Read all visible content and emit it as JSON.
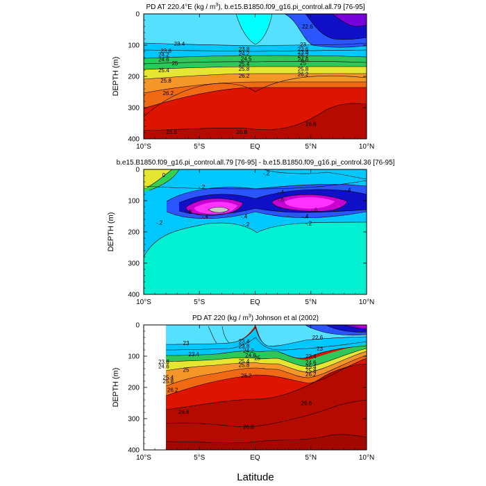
{
  "figure": {
    "xlabel": "Latitude",
    "x_ticks": [
      {
        "value": -10,
        "label": "10°S"
      },
      {
        "value": -5,
        "label": "5°S"
      },
      {
        "value": 0,
        "label": "EQ"
      },
      {
        "value": 5,
        "label": "5°N"
      },
      {
        "value": 10,
        "label": "10°N"
      }
    ],
    "y_ticks": [
      {
        "value": 0,
        "label": "0"
      },
      {
        "value": 100,
        "label": "100"
      },
      {
        "value": 200,
        "label": "200"
      },
      {
        "value": 300,
        "label": "300"
      },
      {
        "value": 400,
        "label": "400"
      }
    ]
  },
  "chart_data": [
    {
      "type": "heatmap",
      "title_main": "PD AT 220.4°E (kg / m",
      "title_sup": "3",
      "title_tail": "), b.e15.B1850.f09_g16.pi_control.all.79 [76-95]",
      "xlabel": "Latitude",
      "ylabel": "DEPTH (m)",
      "xlim": [
        -10,
        10
      ],
      "ylim": [
        400,
        0
      ],
      "colors": {
        "light": "#55e0ff",
        "mid": "#00c8ff",
        "blue": "#2a55ff",
        "navy": "#1010c8",
        "purple": "#7800d8",
        "green": "#2ec85a",
        "yellow": "#e6e632",
        "orange": "#f59628",
        "darkorange": "#f06a14",
        "red": "#dc1400",
        "darkred": "#b40a00"
      },
      "contour_labels": [
        {
          "x": -6.8,
          "y": 95,
          "text": "23.4"
        },
        {
          "x": -8.0,
          "y": 118,
          "text": "23.8"
        },
        {
          "x": -8.2,
          "y": 130,
          "text": "24.2"
        },
        {
          "x": -8.2,
          "y": 145,
          "text": "24.6"
        },
        {
          "x": -7.2,
          "y": 158,
          "text": "25"
        },
        {
          "x": -8.2,
          "y": 180,
          "text": "25.4"
        },
        {
          "x": -8.0,
          "y": 213,
          "text": "25.8"
        },
        {
          "x": -7.8,
          "y": 253,
          "text": "26.2"
        },
        {
          "x": -7.5,
          "y": 378,
          "text": "26.6"
        },
        {
          "x": -1.2,
          "y": 378,
          "text": "26.8"
        },
        {
          "x": 5.0,
          "y": 352,
          "text": "26.6"
        },
        {
          "x": 4.7,
          "y": 40,
          "text": "22.6"
        },
        {
          "x": 4.3,
          "y": 98,
          "text": "23"
        },
        {
          "x": -1.0,
          "y": 112,
          "text": "23.8"
        },
        {
          "x": -1.0,
          "y": 127,
          "text": "24.2"
        },
        {
          "x": -0.8,
          "y": 143,
          "text": "24.5"
        },
        {
          "x": -1.0,
          "y": 160,
          "text": "25.4"
        },
        {
          "x": -1.0,
          "y": 175,
          "text": "25.8"
        },
        {
          "x": -1.0,
          "y": 198,
          "text": "26.2"
        },
        {
          "x": 4.3,
          "y": 112,
          "text": "23.6"
        },
        {
          "x": 4.3,
          "y": 122,
          "text": "23.8"
        },
        {
          "x": 4.3,
          "y": 132,
          "text": "24.2"
        },
        {
          "x": 4.3,
          "y": 145,
          "text": "24.6"
        },
        {
          "x": 4.3,
          "y": 157,
          "text": "25"
        },
        {
          "x": 4.3,
          "y": 177,
          "text": "25.8"
        },
        {
          "x": 4.3,
          "y": 193,
          "text": "26.2"
        }
      ]
    },
    {
      "type": "heatmap",
      "title_main": "b.e15.B1850.f09_g16.pi_control.all.79 [76-95] - b.e15.B1850.f09_g16.pi_control.36 [76-95]",
      "xlabel": "Latitude",
      "ylabel": "DEPTH (m)",
      "xlim": [
        -10,
        10
      ],
      "ylim": [
        400,
        0
      ],
      "colors": {
        "aqua": "#00f0d2",
        "cyan": "#00c8ff",
        "blue": "#2a55ff",
        "navy": "#1010c8",
        "magenta": "#c800d2",
        "pink": "#ff32ff",
        "gray": "#c8c8c8",
        "yellow": "#e6e632",
        "green": "#32d250"
      },
      "contour_labels": [
        {
          "x": -8.2,
          "y": 18,
          "text": "0"
        },
        {
          "x": -4.8,
          "y": 55,
          "text": "-.2"
        },
        {
          "x": 1.0,
          "y": 12,
          "text": "-.2"
        },
        {
          "x": 2.3,
          "y": 72,
          "text": "-.4"
        },
        {
          "x": 8.3,
          "y": 65,
          "text": "-.4"
        },
        {
          "x": 2.3,
          "y": 97,
          "text": "-.6"
        },
        {
          "x": -6.0,
          "y": 135,
          "text": "-.8"
        },
        {
          "x": 5.3,
          "y": 130,
          "text": "-.6"
        },
        {
          "x": -4.5,
          "y": 150,
          "text": "-.4"
        },
        {
          "x": -1.0,
          "y": 150,
          "text": "-.4"
        },
        {
          "x": 4.5,
          "y": 150,
          "text": "-.4"
        },
        {
          "x": -0.8,
          "y": 175,
          "text": "-.2"
        },
        {
          "x": 4.8,
          "y": 172,
          "text": "-.2"
        },
        {
          "x": -8.6,
          "y": 170,
          "text": "-.2"
        }
      ]
    },
    {
      "type": "heatmap",
      "title_main": "PD AT 220 (kg / m",
      "title_sup": "3",
      "title_tail": ") Johnson et al (2002)",
      "xlabel": "Latitude",
      "ylabel": "DEPTH (m)",
      "xlim": [
        -10,
        10
      ],
      "ylim": [
        400,
        0
      ],
      "data_start_lat": -8,
      "colors": {
        "light": "#55e0ff",
        "mid": "#00c8ff",
        "blue": "#2a55ff",
        "navy": "#1010c8",
        "purple": "#7800d8",
        "magenta": "#c800d2",
        "green": "#2ec85a",
        "yellow": "#e6e632",
        "orange": "#f59628",
        "darkorange": "#f06a14",
        "red": "#dc1400",
        "darkred": "#b40a00"
      },
      "contour_labels": [
        {
          "x": -6.2,
          "y": 58,
          "text": "23"
        },
        {
          "x": -5.5,
          "y": 93,
          "text": "23.4"
        },
        {
          "x": -8.2,
          "y": 118,
          "text": "23.8"
        },
        {
          "x": -8.2,
          "y": 132,
          "text": "24.6"
        },
        {
          "x": -6.2,
          "y": 143,
          "text": "25"
        },
        {
          "x": -7.8,
          "y": 168,
          "text": "25.4"
        },
        {
          "x": -7.8,
          "y": 180,
          "text": "25.8"
        },
        {
          "x": -7.4,
          "y": 208,
          "text": "26.2"
        },
        {
          "x": -6.4,
          "y": 278,
          "text": "26.6"
        },
        {
          "x": -0.6,
          "y": 325,
          "text": "26.8"
        },
        {
          "x": 4.6,
          "y": 250,
          "text": "26.6"
        },
        {
          "x": 5.6,
          "y": 40,
          "text": "22.6"
        },
        {
          "x": 5.8,
          "y": 75,
          "text": "23"
        },
        {
          "x": 5.0,
          "y": 100,
          "text": "23.4"
        },
        {
          "x": -1.0,
          "y": 52,
          "text": "23.4"
        },
        {
          "x": -1.0,
          "y": 68,
          "text": "23.8"
        },
        {
          "x": -0.6,
          "y": 82,
          "text": "24.2"
        },
        {
          "x": -0.4,
          "y": 97,
          "text": "24.8"
        },
        {
          "x": 0.2,
          "y": 105,
          "text": "25"
        },
        {
          "x": -1.0,
          "y": 115,
          "text": "25.4"
        },
        {
          "x": -1.0,
          "y": 128,
          "text": "25.8"
        },
        {
          "x": -0.8,
          "y": 162,
          "text": "26.2"
        },
        {
          "x": 5.0,
          "y": 120,
          "text": "24.6"
        },
        {
          "x": 5.0,
          "y": 133,
          "text": "25.4"
        },
        {
          "x": 5.0,
          "y": 145,
          "text": "25.8"
        },
        {
          "x": 5.0,
          "y": 158,
          "text": "26.2"
        }
      ]
    }
  ]
}
